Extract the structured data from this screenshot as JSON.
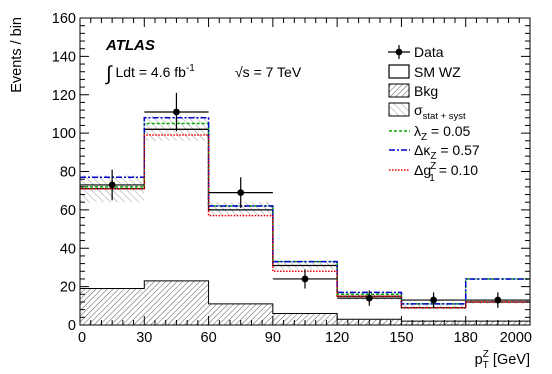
{
  "chart_data": {
    "type": "histogram",
    "experiment_label": "ATLAS",
    "luminosity_text": "∫ Ldt = 4.6 fb⁻¹",
    "energy_text": "√s = 7 TeV",
    "xlabel": "p_T^Z [GeV]",
    "ylabel": "Events / bin",
    "ylim": [
      0,
      160
    ],
    "y_ticks": [
      "0",
      "20",
      "40",
      "60",
      "80",
      "100",
      "120",
      "140",
      "160"
    ],
    "x_tick_labels": [
      "0",
      "30",
      "60",
      "90",
      "120",
      "150",
      "180",
      "2000"
    ],
    "bin_edges": [
      0,
      30,
      60,
      90,
      120,
      150,
      180,
      2000
    ],
    "series": [
      {
        "name": "SM WZ",
        "values": [
          71,
          102,
          60,
          31,
          15,
          9,
          12
        ]
      },
      {
        "name": "Bkg",
        "values": [
          19,
          23,
          11,
          6,
          3,
          2,
          2
        ]
      },
      {
        "name": "σ_stat + syst",
        "band_low": [
          64,
          96,
          57,
          29,
          13,
          8,
          11
        ],
        "band_high": [
          78,
          109,
          64,
          33,
          17,
          11,
          13
        ]
      },
      {
        "name": "λ_Z = 0.05",
        "values": [
          72,
          105,
          62,
          33,
          16,
          11,
          24
        ],
        "color": "#00aa00",
        "style": "dashed"
      },
      {
        "name": "Δκ_Z = 0.57",
        "values": [
          77,
          108,
          62,
          33,
          17,
          11,
          24
        ],
        "color": "#0000cc",
        "style": "dashdot"
      },
      {
        "name": "Δg_1^Z = 0.10",
        "values": [
          71,
          99,
          57,
          28,
          15,
          9,
          12
        ],
        "color": "#ee0000",
        "style": "dotted"
      }
    ],
    "data": {
      "name": "Data",
      "values": [
        73,
        111,
        69,
        24,
        14,
        13,
        13
      ],
      "errors": [
        8,
        10,
        8,
        5,
        4,
        4,
        4
      ]
    },
    "legend": {
      "position": "top-right",
      "entries": [
        "Data",
        "SM WZ",
        "Bkg",
        "σ_stat + syst",
        "λ_Z = 0.05",
        "Δκ_Z = 0.57",
        "Δg_1^Z = 0.10"
      ]
    }
  }
}
